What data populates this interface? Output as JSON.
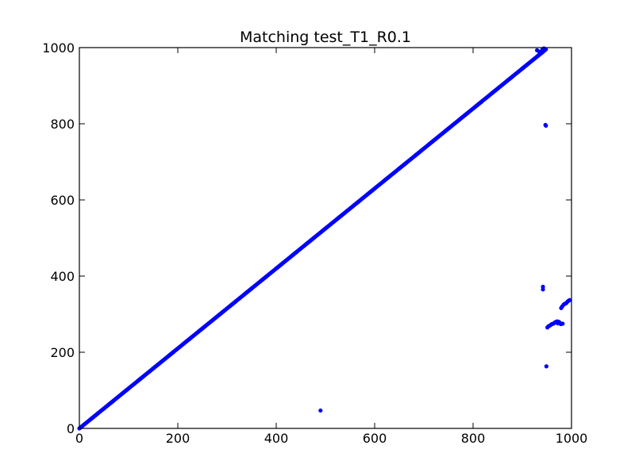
{
  "chart_data": {
    "type": "scatter",
    "title": "Matching test_T1_R0.1",
    "xlabel": "",
    "ylabel": "",
    "xlim": [
      0,
      1000
    ],
    "ylim": [
      0,
      1000
    ],
    "xticks": [
      "0",
      "200",
      "400",
      "600",
      "800",
      "1000"
    ],
    "yticks": [
      "0",
      "200",
      "400",
      "600",
      "800",
      "1000"
    ],
    "grid": false,
    "color": "#0000ff",
    "diagonal": {
      "x_start": 0,
      "x_end": 948,
      "slope": 1.05,
      "step": 2
    },
    "series": [
      {
        "values": [
          {
            "x": 490,
            "y": 47
          },
          {
            "x": 942,
            "y": 372
          },
          {
            "x": 942,
            "y": 365
          },
          {
            "x": 947,
            "y": 797
          },
          {
            "x": 948,
            "y": 795
          },
          {
            "x": 949,
            "y": 163
          },
          {
            "x": 951,
            "y": 265
          },
          {
            "x": 953,
            "y": 268
          },
          {
            "x": 956,
            "y": 270
          },
          {
            "x": 958,
            "y": 272
          },
          {
            "x": 960,
            "y": 274
          },
          {
            "x": 963,
            "y": 275
          },
          {
            "x": 965,
            "y": 277
          },
          {
            "x": 967,
            "y": 279
          },
          {
            "x": 969,
            "y": 280
          },
          {
            "x": 971,
            "y": 281
          },
          {
            "x": 972,
            "y": 276
          },
          {
            "x": 974,
            "y": 280
          },
          {
            "x": 976,
            "y": 278
          },
          {
            "x": 978,
            "y": 274
          },
          {
            "x": 979,
            "y": 316
          },
          {
            "x": 981,
            "y": 320
          },
          {
            "x": 982,
            "y": 275
          },
          {
            "x": 984,
            "y": 325
          },
          {
            "x": 986,
            "y": 327
          },
          {
            "x": 988,
            "y": 328
          },
          {
            "x": 990,
            "y": 330
          },
          {
            "x": 992,
            "y": 333
          },
          {
            "x": 994,
            "y": 335
          },
          {
            "x": 996,
            "y": 337
          },
          {
            "x": 930,
            "y": 993
          },
          {
            "x": 934,
            "y": 990
          },
          {
            "x": 938,
            "y": 987
          },
          {
            "x": 941,
            "y": 995
          },
          {
            "x": 944,
            "y": 998
          }
        ]
      }
    ]
  }
}
